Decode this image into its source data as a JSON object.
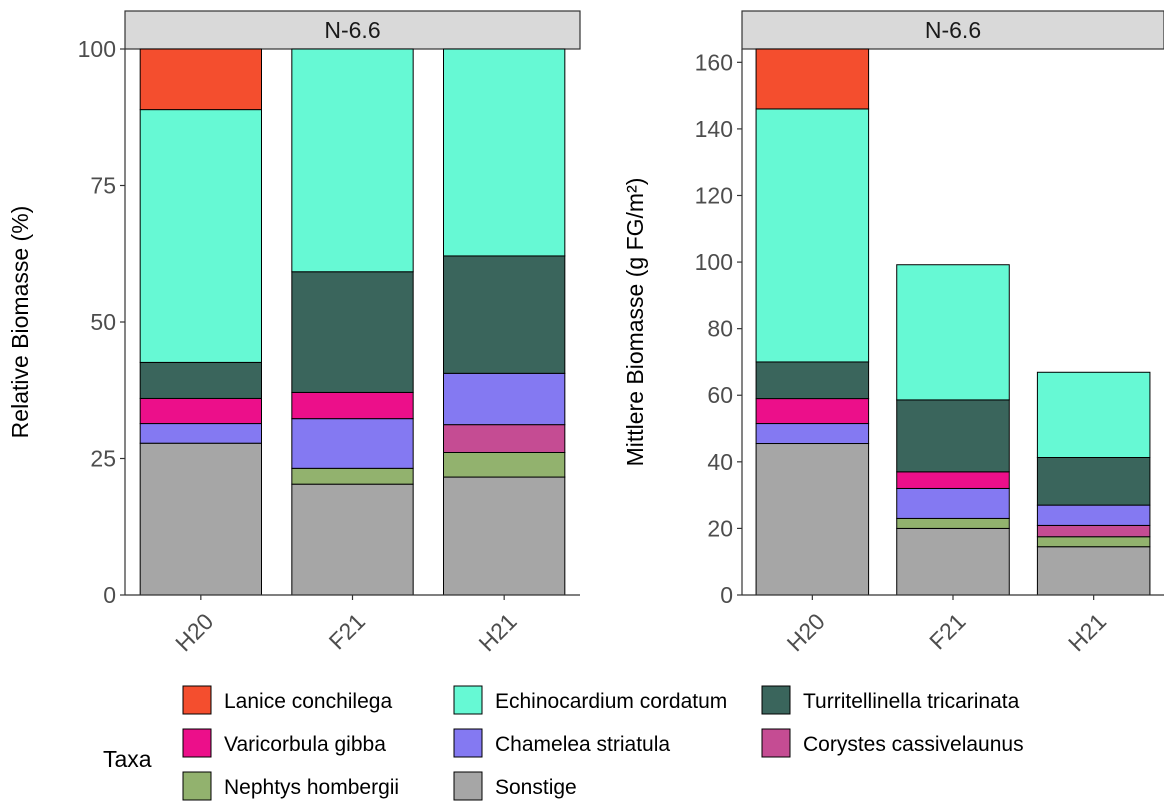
{
  "chart_data": {
    "type": "bar",
    "stacked": true,
    "categories": [
      "H20",
      "F21",
      "H21"
    ],
    "legend": {
      "title": "Taxa",
      "placement": "bottom",
      "entries": [
        {
          "name": "Lanice conchilega",
          "color": "#F44E2E"
        },
        {
          "name": "Echinocardium cordatum",
          "color": "#66F9D4"
        },
        {
          "name": "Turritellinella tricarinata",
          "color": "#3A655C"
        },
        {
          "name": "Varicorbula gibba",
          "color": "#EC0F8A"
        },
        {
          "name": "Chamelea striatula",
          "color": "#8479F2"
        },
        {
          "name": "Corystes cassivelaunus",
          "color": "#C54C93"
        },
        {
          "name": "Nephtys hombergii",
          "color": "#92B26E"
        },
        {
          "name": "Sonstige",
          "color": "#A6A6A6"
        }
      ]
    },
    "panels": [
      {
        "strip": "N-6.6",
        "ylabel": "Relative Biomasse (%)",
        "ylim": [
          0,
          100
        ],
        "yticks": [
          0,
          25,
          50,
          75,
          100
        ],
        "series": [
          {
            "name": "Sonstige",
            "values": [
              27.8,
              20.3,
              21.6
            ]
          },
          {
            "name": "Nephtys hombergii",
            "values": [
              0,
              2.9,
              4.5
            ]
          },
          {
            "name": "Corystes cassivelaunus",
            "values": [
              0,
              0,
              5.1
            ]
          },
          {
            "name": "Chamelea striatula",
            "values": [
              3.6,
              9.1,
              9.4
            ]
          },
          {
            "name": "Varicorbula gibba",
            "values": [
              4.6,
              4.8,
              0
            ]
          },
          {
            "name": "Turritellinella tricarinata",
            "values": [
              6.6,
              22.1,
              21.5
            ]
          },
          {
            "name": "Echinocardium cordatum",
            "values": [
              46.3,
              40.8,
              37.9
            ]
          },
          {
            "name": "Lanice conchilega",
            "values": [
              11.1,
              0,
              0
            ]
          }
        ]
      },
      {
        "strip": "N-6.6",
        "ylabel": "Mittlere Biomasse (g FG/m²)",
        "ylim": [
          0,
          164
        ],
        "yticks": [
          0,
          20,
          40,
          60,
          80,
          100,
          120,
          140,
          160
        ],
        "series": [
          {
            "name": "Sonstige",
            "values": [
              45.5,
              20.0,
              14.5
            ]
          },
          {
            "name": "Nephtys hombergii",
            "values": [
              0,
              3.0,
              3.0
            ]
          },
          {
            "name": "Corystes cassivelaunus",
            "values": [
              0,
              0,
              3.4
            ]
          },
          {
            "name": "Chamelea striatula",
            "values": [
              6.0,
              9.0,
              6.1
            ]
          },
          {
            "name": "Varicorbula gibba",
            "values": [
              7.5,
              5.0,
              0
            ]
          },
          {
            "name": "Turritellinella tricarinata",
            "values": [
              11.0,
              21.6,
              14.3
            ]
          },
          {
            "name": "Echinocardium cordatum",
            "values": [
              76.0,
              40.6,
              25.6
            ]
          },
          {
            "name": "Lanice conchilega",
            "values": [
              18.0,
              0,
              0
            ]
          }
        ]
      }
    ]
  }
}
